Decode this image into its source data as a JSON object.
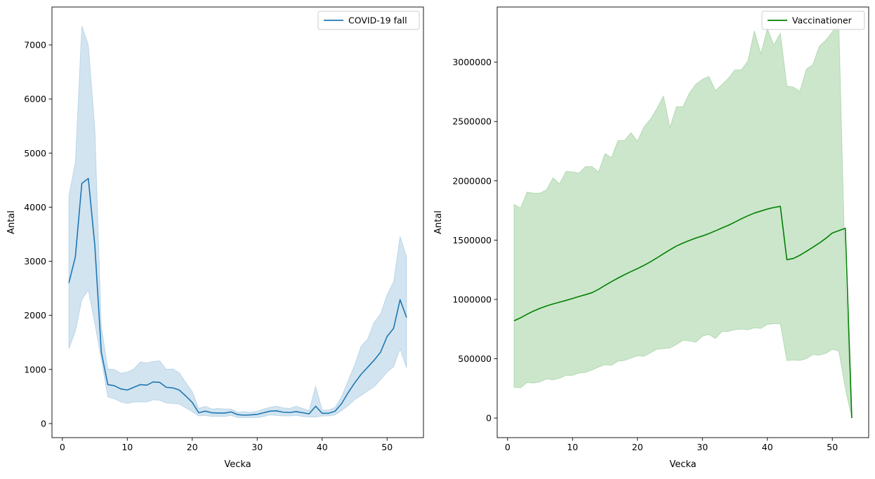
{
  "chart_data": [
    {
      "type": "line",
      "xlabel": "Vecka",
      "ylabel": "Antal",
      "xlim": [
        -1.6,
        55.6
      ],
      "ylim": [
        -260,
        7700
      ],
      "xticks": [
        0,
        10,
        20,
        30,
        40,
        50
      ],
      "yticks": [
        0,
        1000,
        2000,
        3000,
        4000,
        5000,
        6000,
        7000
      ],
      "legend_position": "upper right",
      "grid": false,
      "series": [
        {
          "name": "COVID-19 fall",
          "color": "#1f77b4",
          "band_color": "#1f77b4",
          "x": [
            1,
            2,
            3,
            4,
            5,
            6,
            7,
            8,
            9,
            10,
            11,
            12,
            13,
            14,
            15,
            16,
            17,
            18,
            19,
            20,
            21,
            22,
            23,
            24,
            25,
            26,
            27,
            28,
            29,
            30,
            31,
            32,
            33,
            34,
            35,
            36,
            37,
            38,
            39,
            40,
            41,
            42,
            43,
            44,
            45,
            46,
            47,
            48,
            49,
            50,
            51,
            52,
            53
          ],
          "y": [
            2600,
            3080,
            4440,
            4530,
            3290,
            1320,
            720,
            700,
            640,
            620,
            670,
            720,
            710,
            770,
            760,
            670,
            660,
            620,
            510,
            390,
            200,
            230,
            200,
            195,
            195,
            215,
            165,
            155,
            160,
            170,
            200,
            230,
            235,
            210,
            205,
            220,
            200,
            180,
            320,
            190,
            190,
            230,
            370,
            570,
            750,
            910,
            1040,
            1170,
            1320,
            1610,
            1760,
            2290,
            1960
          ],
          "lower": [
            1380,
            1700,
            2290,
            2470,
            1850,
            1180,
            490,
            460,
            400,
            370,
            400,
            400,
            400,
            440,
            430,
            380,
            370,
            360,
            290,
            220,
            140,
            150,
            130,
            130,
            130,
            150,
            110,
            110,
            110,
            110,
            130,
            160,
            150,
            140,
            140,
            150,
            130,
            120,
            120,
            140,
            140,
            160,
            240,
            330,
            440,
            520,
            600,
            680,
            810,
            950,
            1050,
            1380,
            1030
          ],
          "upper": [
            4210,
            4830,
            7350,
            7000,
            5450,
            1800,
            1010,
            1000,
            930,
            950,
            1010,
            1140,
            1120,
            1150,
            1160,
            1000,
            1010,
            940,
            760,
            590,
            280,
            320,
            270,
            280,
            270,
            270,
            210,
            220,
            210,
            230,
            270,
            300,
            320,
            290,
            280,
            320,
            280,
            240,
            690,
            250,
            250,
            300,
            500,
            790,
            1080,
            1430,
            1560,
            1870,
            2030,
            2380,
            2620,
            3460,
            3080
          ]
        }
      ]
    },
    {
      "type": "line",
      "xlabel": "Vecka",
      "ylabel": "Antal",
      "xlim": [
        -1.6,
        55.6
      ],
      "ylim": [
        -165000,
        3465000
      ],
      "xticks": [
        0,
        10,
        20,
        30,
        40,
        50
      ],
      "yticks": [
        0,
        500000,
        1000000,
        1500000,
        2000000,
        2500000,
        3000000
      ],
      "legend_position": "upper right",
      "grid": false,
      "series": [
        {
          "name": "Vaccinationer",
          "color": "#008000",
          "band_color": "#008000",
          "x": [
            1,
            2,
            3,
            4,
            5,
            6,
            7,
            8,
            9,
            10,
            11,
            12,
            13,
            14,
            15,
            16,
            17,
            18,
            19,
            20,
            21,
            22,
            23,
            24,
            25,
            26,
            27,
            28,
            29,
            30,
            31,
            32,
            33,
            34,
            35,
            36,
            37,
            38,
            39,
            40,
            41,
            42,
            43,
            44,
            45,
            46,
            47,
            48,
            49,
            50,
            51,
            52,
            53
          ],
          "y": [
            820000,
            845000,
            875000,
            902000,
            925000,
            945000,
            962000,
            977000,
            992000,
            1008000,
            1025000,
            1040000,
            1057000,
            1085000,
            1118000,
            1150000,
            1180000,
            1208000,
            1235000,
            1260000,
            1287000,
            1317000,
            1350000,
            1385000,
            1418000,
            1450000,
            1475000,
            1497000,
            1518000,
            1535000,
            1555000,
            1578000,
            1602000,
            1625000,
            1652000,
            1680000,
            1705000,
            1728000,
            1745000,
            1762000,
            1775000,
            1785000,
            1335000,
            1345000,
            1372000,
            1405000,
            1440000,
            1475000,
            1515000,
            1560000,
            1580000,
            1600000,
            0
          ],
          "lower": [
            260000,
            255000,
            300000,
            295000,
            305000,
            330000,
            322000,
            335000,
            360000,
            360000,
            380000,
            385000,
            405000,
            430000,
            450000,
            445000,
            480000,
            485000,
            505000,
            525000,
            520000,
            550000,
            580000,
            585000,
            590000,
            620000,
            655000,
            650000,
            640000,
            690000,
            705000,
            670000,
            730000,
            730000,
            745000,
            750000,
            745000,
            760000,
            755000,
            790000,
            795000,
            795000,
            485000,
            490000,
            485000,
            500000,
            535000,
            530000,
            545000,
            580000,
            565000,
            250000,
            0
          ],
          "upper": [
            1800000,
            1770000,
            1905000,
            1895000,
            1895000,
            1925000,
            2025000,
            1975000,
            2080000,
            2075000,
            2065000,
            2120000,
            2120000,
            2075000,
            2230000,
            2195000,
            2340000,
            2340000,
            2405000,
            2335000,
            2455000,
            2520000,
            2610000,
            2715000,
            2450000,
            2625000,
            2625000,
            2740000,
            2815000,
            2855000,
            2880000,
            2760000,
            2810000,
            2865000,
            2935000,
            2935000,
            3010000,
            3265000,
            3070000,
            3285000,
            3145000,
            3245000,
            2800000,
            2790000,
            2755000,
            2940000,
            2980000,
            3135000,
            3185000,
            3255000,
            3335000,
            1200000,
            0
          ]
        }
      ]
    }
  ]
}
